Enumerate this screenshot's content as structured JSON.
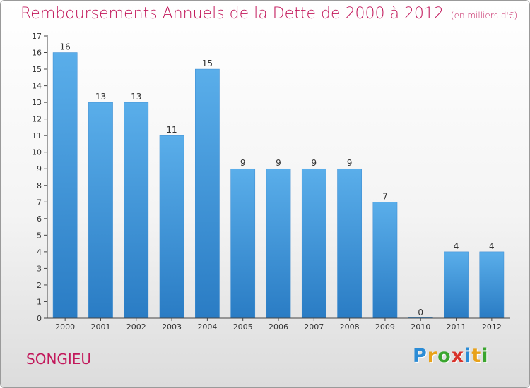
{
  "header": {
    "title": "Remboursements Annuels de la Dette de 2000 à 2012",
    "subtitle": "(en milliers d'€)"
  },
  "commune": {
    "name": "SONGIEU"
  },
  "brand": {
    "letters": [
      "P",
      "r",
      "o",
      "x",
      "i",
      "t",
      "i"
    ],
    "colors": [
      "#2b8cd6",
      "#e8a21a",
      "#3aa52e",
      "#d8322a",
      "#2b8cd6",
      "#e8a21a",
      "#3aa52e"
    ]
  },
  "colors": {
    "bar_top": "#5aaeea",
    "bar_bottom": "#2a7cc4",
    "accent": "#c2185b"
  },
  "chart_data": {
    "type": "bar",
    "title": "Remboursements Annuels de la Dette de 2000 à 2012",
    "xlabel": "",
    "ylabel": "",
    "ylim": [
      0,
      17
    ],
    "yticks": [
      0,
      1,
      2,
      3,
      4,
      5,
      6,
      7,
      8,
      9,
      10,
      11,
      12,
      13,
      14,
      15,
      16,
      17
    ],
    "grid": false,
    "categories": [
      "2000",
      "2001",
      "2002",
      "2003",
      "2004",
      "2005",
      "2006",
      "2007",
      "2008",
      "2009",
      "2010",
      "2011",
      "2012"
    ],
    "values": [
      16,
      13,
      13,
      11,
      15,
      9,
      9,
      9,
      9,
      7,
      0,
      4,
      4
    ]
  }
}
